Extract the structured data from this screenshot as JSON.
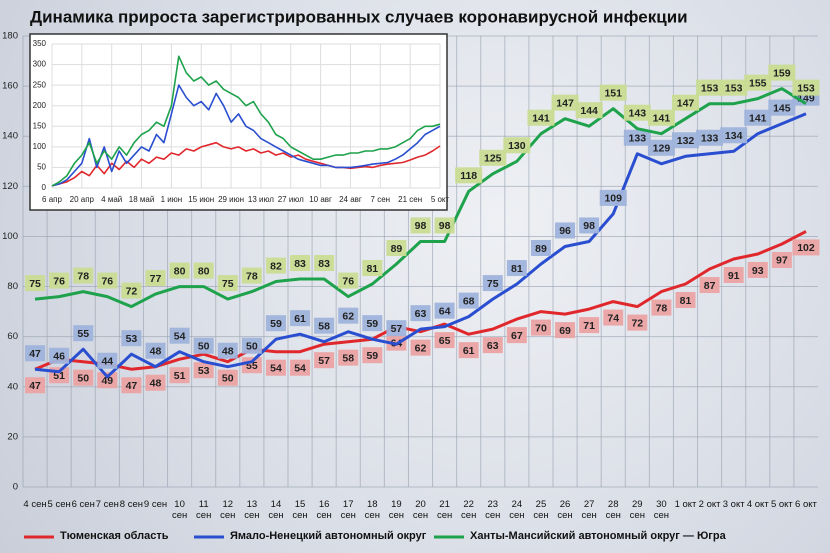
{
  "chart_data": [
    {
      "type": "line",
      "title": "Динамика прироста зарегистрированных случаев коронавирусной инфекции",
      "categories": [
        "4 сен",
        "5 сен",
        "6 сен",
        "7 сен",
        "8 сен",
        "9 сен",
        "10 сен",
        "11 сен",
        "12 сен",
        "13 сен",
        "14 сен",
        "15 сен",
        "16 сен",
        "17 сен",
        "18 сен",
        "19 сен",
        "20 сен",
        "21 сен",
        "22 сен",
        "23 сен",
        "24 сен",
        "25 сен",
        "26 сен",
        "27 сен",
        "28 сен",
        "29 сен",
        "30 сен",
        "1 окт",
        "2 окт",
        "3 окт",
        "4 окт",
        "5 окт",
        "6 окт"
      ],
      "series": [
        {
          "name": "Тюменская область",
          "color": "#e0282c",
          "label_color": "#eba3a3",
          "values": [
            47,
            51,
            50,
            49,
            47,
            48,
            51,
            53,
            50,
            55,
            54,
            54,
            57,
            58,
            59,
            64,
            62,
            65,
            61,
            63,
            67,
            70,
            69,
            71,
            74,
            72,
            78,
            81,
            87,
            91,
            93,
            97,
            102
          ]
        },
        {
          "name": "Ямало-Ненецкий автономный округ",
          "color": "#2a4ed0",
          "label_color": "#9fb3db",
          "values": [
            47,
            46,
            55,
            44,
            53,
            48,
            54,
            50,
            48,
            50,
            59,
            61,
            58,
            62,
            59,
            57,
            63,
            64,
            68,
            75,
            81,
            89,
            96,
            98,
            109,
            133,
            129,
            132,
            133,
            134,
            141,
            145,
            149
          ]
        },
        {
          "name": "Ханты-Мансийский автономный округ — Югра",
          "color": "#1ea24c",
          "label_color": "#c9dc92",
          "values": [
            75,
            76,
            78,
            76,
            72,
            77,
            80,
            80,
            75,
            78,
            82,
            83,
            83,
            76,
            81,
            89,
            98,
            98,
            118,
            125,
            130,
            141,
            147,
            144,
            151,
            143,
            141,
            147,
            153,
            153,
            155,
            159,
            153
          ]
        }
      ],
      "ylim": [
        0,
        180
      ],
      "yticks": [
        0,
        20,
        40,
        60,
        80,
        100,
        120,
        140,
        160,
        180
      ],
      "grid": true,
      "legend": "bottom"
    },
    {
      "type": "line",
      "categories": [
        "6 апр",
        null,
        null,
        null,
        "20 апр",
        null,
        null,
        null,
        "4 май",
        null,
        null,
        null,
        "18 май",
        null,
        null,
        null,
        "1 июн",
        null,
        null,
        null,
        "15 июн",
        null,
        null,
        null,
        "29 июн",
        null,
        null,
        null,
        "13 июл",
        null,
        null,
        null,
        "27 июл",
        null,
        null,
        null,
        "10 авг",
        null,
        null,
        null,
        "24 авг",
        null,
        null,
        null,
        "7 сен",
        null,
        null,
        null,
        "21 сен",
        null,
        null,
        null,
        "5 окт"
      ],
      "series": [
        {
          "color": "#e0282c",
          "values": [
            5,
            10,
            15,
            25,
            40,
            30,
            55,
            35,
            60,
            45,
            65,
            50,
            70,
            60,
            75,
            70,
            85,
            80,
            95,
            90,
            100,
            105,
            110,
            100,
            95,
            100,
            90,
            95,
            85,
            90,
            80,
            85,
            75,
            80,
            70,
            65,
            60,
            55,
            50,
            50,
            48,
            50,
            52,
            50,
            55,
            58,
            60,
            62,
            68,
            75,
            80,
            90,
            102
          ]
        },
        {
          "color": "#2a4ed0",
          "values": [
            5,
            10,
            20,
            40,
            60,
            120,
            50,
            100,
            40,
            90,
            60,
            80,
            100,
            90,
            130,
            110,
            180,
            250,
            220,
            200,
            210,
            190,
            230,
            200,
            160,
            180,
            150,
            140,
            120,
            110,
            100,
            90,
            80,
            70,
            65,
            60,
            55,
            55,
            50,
            50,
            50,
            52,
            55,
            58,
            60,
            62,
            70,
            80,
            95,
            110,
            130,
            140,
            150
          ]
        },
        {
          "color": "#1ea24c",
          "values": [
            5,
            15,
            30,
            60,
            80,
            110,
            60,
            90,
            70,
            100,
            80,
            110,
            130,
            140,
            160,
            150,
            200,
            320,
            280,
            260,
            270,
            250,
            260,
            240,
            230,
            220,
            200,
            210,
            180,
            160,
            130,
            120,
            100,
            90,
            80,
            70,
            70,
            75,
            80,
            80,
            85,
            85,
            90,
            90,
            95,
            95,
            100,
            110,
            120,
            140,
            150,
            150,
            155
          ]
        }
      ],
      "ylim": [
        0,
        350
      ],
      "yticks": [
        0,
        50,
        100,
        150,
        200,
        250,
        300,
        350
      ],
      "grid": true
    }
  ]
}
